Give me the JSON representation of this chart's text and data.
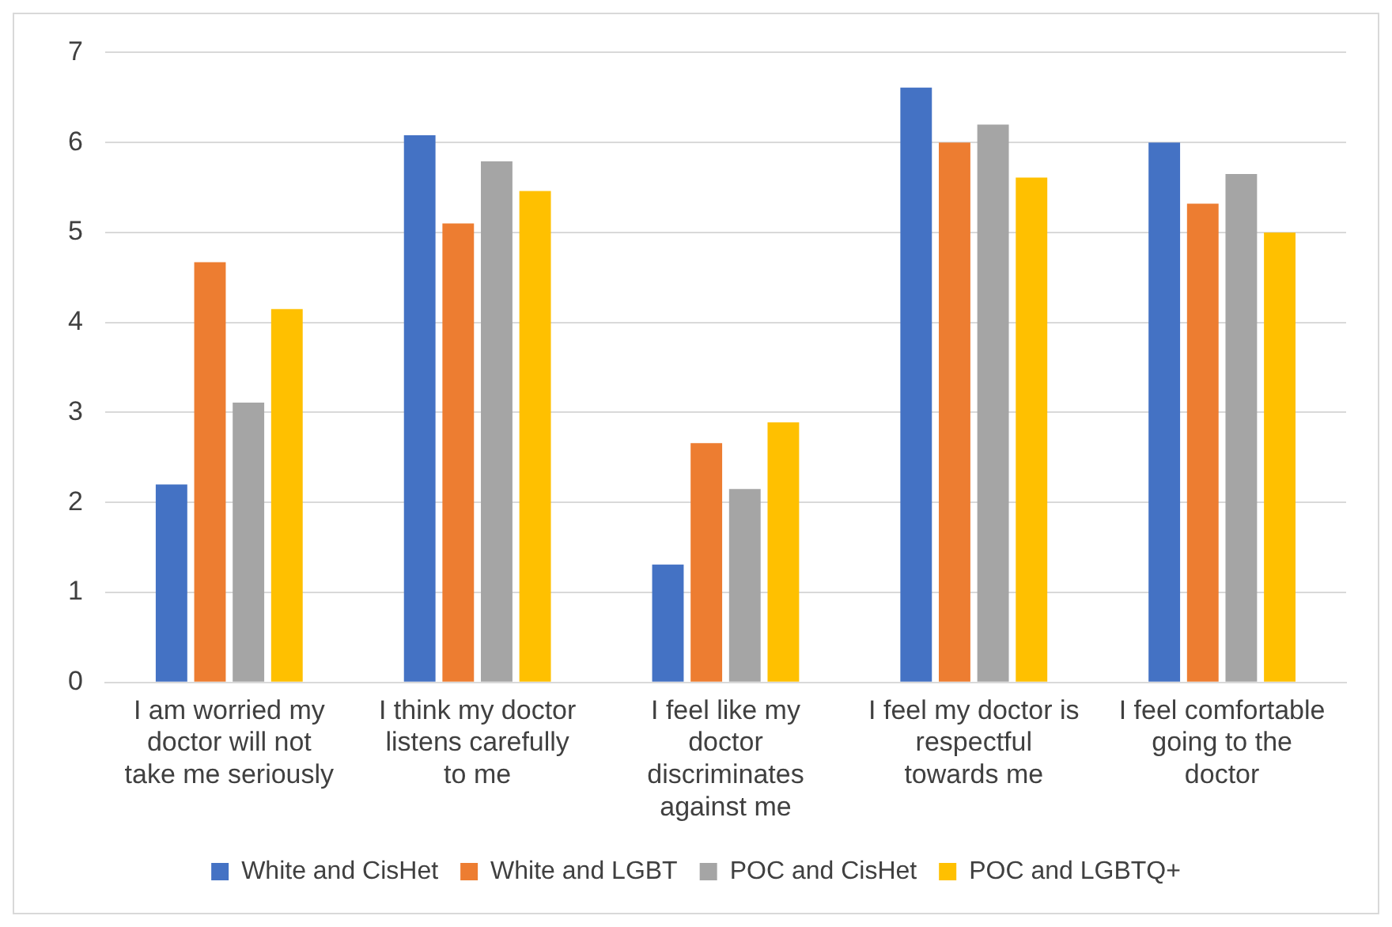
{
  "chart_data": {
    "type": "bar",
    "categories": [
      "I am worried my doctor will not take me seriously",
      "I think my doctor listens carefully to me",
      "I feel like my doctor discriminates against me",
      "I feel my doctor is respectful towards me",
      "I feel comfortable going to the doctor"
    ],
    "series": [
      {
        "name": "White and CisHet",
        "color": "#4472c4",
        "values": [
          2.2,
          6.08,
          1.31,
          6.61,
          6.0
        ]
      },
      {
        "name": "White and LGBT",
        "color": "#ed7d31",
        "values": [
          4.67,
          5.1,
          2.66,
          6.0,
          5.32
        ]
      },
      {
        "name": "POC and CisHet",
        "color": "#a5a5a5",
        "values": [
          3.11,
          5.79,
          2.15,
          6.2,
          5.65
        ]
      },
      {
        "name": "POC and LGBTQ+",
        "color": "#ffc000",
        "values": [
          4.15,
          5.46,
          2.89,
          5.61,
          5.0
        ]
      }
    ],
    "ylim": [
      0,
      7
    ],
    "yticks": [
      0,
      1,
      2,
      3,
      4,
      5,
      6,
      7
    ],
    "grid": "y",
    "legend": "bottom"
  }
}
